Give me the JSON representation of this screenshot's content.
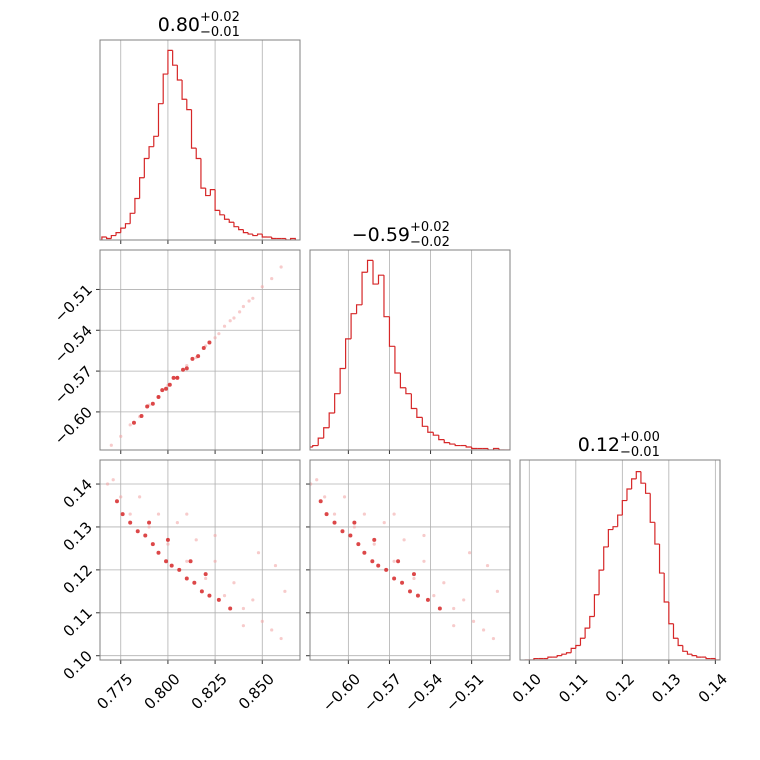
{
  "chart_data": [
    {
      "type": "histogram",
      "title": "0.80",
      "title_upper": "+0.02",
      "title_lower": "−0.01",
      "color": "#d62728",
      "grid": true,
      "xlim": [
        0.764,
        0.87
      ],
      "ylim": [
        0,
        135
      ],
      "xticks": [
        0.775,
        0.8,
        0.825,
        0.85
      ],
      "bins": [
        0.765,
        0.7675,
        0.77,
        0.7725,
        0.775,
        0.7775,
        0.78,
        0.7825,
        0.785,
        0.7875,
        0.79,
        0.7925,
        0.795,
        0.7975,
        0.8,
        0.8025,
        0.805,
        0.8075,
        0.81,
        0.8125,
        0.815,
        0.8175,
        0.82,
        0.8225,
        0.825,
        0.8275,
        0.83,
        0.8325,
        0.835,
        0.8375,
        0.84,
        0.8425,
        0.845,
        0.8475,
        0.85,
        0.8525,
        0.855,
        0.8575,
        0.86,
        0.8625,
        0.865,
        0.8675
      ],
      "values": [
        2,
        1,
        3,
        5,
        8,
        11,
        18,
        28,
        42,
        55,
        63,
        70,
        92,
        112,
        128,
        118,
        108,
        95,
        88,
        62,
        55,
        35,
        30,
        34,
        20,
        17,
        14,
        12,
        9,
        7,
        5,
        4,
        3,
        4,
        2,
        2,
        1,
        1,
        1,
        0,
        1
      ]
    },
    {
      "type": "scatter",
      "grid": true,
      "xlim": [
        0.764,
        0.87
      ],
      "ylim": [
        -0.628,
        -0.481
      ],
      "xticks": [
        0.775,
        0.8,
        0.825,
        0.85
      ],
      "yticks": [
        {
          "value": -0.51,
          "label": "−0.51"
        },
        {
          "value": -0.54,
          "label": "−0.54"
        },
        {
          "value": -0.57,
          "label": "−0.57"
        },
        {
          "value": -0.6,
          "label": "−0.60"
        }
      ],
      "series": [
        {
          "color": "#f2a9a9",
          "x": [
            0.77,
            0.775,
            0.78,
            0.785,
            0.79,
            0.795,
            0.8,
            0.805,
            0.81,
            0.815,
            0.82,
            0.825,
            0.83,
            0.835,
            0.84,
            0.845,
            0.85,
            0.855,
            0.86,
            0.827,
            0.833,
            0.838,
            0.843
          ],
          "y": [
            -0.6245,
            -0.618,
            -0.6095,
            -0.6035,
            -0.595,
            -0.589,
            -0.5805,
            -0.5745,
            -0.566,
            -0.56,
            -0.5515,
            -0.5455,
            -0.537,
            -0.531,
            -0.5225,
            -0.5165,
            -0.508,
            -0.502,
            -0.4935,
            -0.5425,
            -0.533,
            -0.5265,
            -0.5185
          ]
        },
        {
          "color": "#d62728",
          "x": [
            0.782,
            0.786,
            0.789,
            0.792,
            0.795,
            0.797,
            0.799,
            0.801,
            0.803,
            0.805,
            0.808,
            0.81,
            0.813,
            0.816,
            0.819,
            0.822
          ],
          "y": [
            -0.608,
            -0.603,
            -0.596,
            -0.594,
            -0.589,
            -0.584,
            -0.583,
            -0.58,
            -0.575,
            -0.575,
            -0.569,
            -0.568,
            -0.561,
            -0.559,
            -0.553,
            -0.549
          ]
        }
      ]
    },
    {
      "type": "histogram",
      "title": "−0.59",
      "title_upper": "+0.02",
      "title_lower": "−0.02",
      "color": "#d62728",
      "grid": true,
      "xlim": [
        -0.628,
        -0.482
      ],
      "ylim": [
        0,
        135
      ],
      "xticks": [
        -0.6,
        -0.57,
        -0.54,
        -0.51
      ],
      "bins": [
        -0.63,
        -0.626,
        -0.622,
        -0.618,
        -0.614,
        -0.61,
        -0.606,
        -0.602,
        -0.598,
        -0.594,
        -0.59,
        -0.586,
        -0.582,
        -0.578,
        -0.574,
        -0.57,
        -0.566,
        -0.562,
        -0.558,
        -0.554,
        -0.55,
        -0.546,
        -0.542,
        -0.538,
        -0.534,
        -0.53,
        -0.526,
        -0.522,
        -0.518,
        -0.514,
        -0.51,
        -0.506,
        -0.502,
        -0.498,
        -0.494,
        -0.49,
        -0.486,
        -0.482
      ],
      "values": [
        2,
        3,
        8,
        15,
        25,
        38,
        55,
        75,
        92,
        98,
        120,
        128,
        112,
        118,
        90,
        70,
        52,
        42,
        38,
        28,
        22,
        16,
        12,
        10,
        7,
        5,
        4,
        3,
        3,
        2,
        1,
        1,
        1,
        0,
        1,
        0,
        0
      ]
    },
    {
      "type": "scatter",
      "grid": true,
      "xlim": [
        0.764,
        0.87
      ],
      "ylim": [
        0.099,
        0.1456
      ],
      "xticks": [
        0.775,
        {
          "value": 0.8,
          "label": "0.800"
        },
        0.825,
        {
          "value": 0.85,
          "label": "0.850"
        }
      ],
      "yticks": [
        {
          "value": 0.1,
          "label": "0.10"
        },
        0.11,
        0.12,
        0.13,
        0.14
      ],
      "series": [
        {
          "color": "#f2a9a9",
          "x": [
            0.768,
            0.771,
            0.775,
            0.78,
            0.785,
            0.79,
            0.795,
            0.8,
            0.805,
            0.81,
            0.815,
            0.82,
            0.825,
            0.83,
            0.835,
            0.84,
            0.845,
            0.85,
            0.855,
            0.86,
            0.857,
            0.862,
            0.81,
            0.825,
            0.84,
            0.848
          ],
          "y": [
            0.14,
            0.141,
            0.137,
            0.133,
            0.137,
            0.13,
            0.133,
            0.126,
            0.131,
            0.122,
            0.127,
            0.118,
            0.122,
            0.114,
            0.117,
            0.111,
            0.113,
            0.108,
            0.106,
            0.104,
            0.121,
            0.115,
            0.133,
            0.128,
            0.107,
            0.124
          ]
        },
        {
          "color": "#d62728",
          "x": [
            0.773,
            0.776,
            0.78,
            0.784,
            0.788,
            0.792,
            0.795,
            0.799,
            0.802,
            0.806,
            0.81,
            0.814,
            0.818,
            0.822,
            0.827,
            0.833,
            0.79,
            0.8,
            0.812,
            0.82
          ],
          "y": [
            0.136,
            0.133,
            0.131,
            0.129,
            0.128,
            0.126,
            0.124,
            0.122,
            0.121,
            0.12,
            0.118,
            0.117,
            0.115,
            0.114,
            0.113,
            0.111,
            0.131,
            0.127,
            0.122,
            0.119
          ]
        }
      ]
    },
    {
      "type": "scatter",
      "grid": true,
      "xlim": [
        -0.628,
        -0.482
      ],
      "ylim": [
        0.099,
        0.1456
      ],
      "xticks": [
        {
          "value": -0.6,
          "label": "−0.60"
        },
        {
          "value": -0.57,
          "label": "−0.57"
        },
        {
          "value": -0.54,
          "label": "−0.54"
        },
        {
          "value": -0.51,
          "label": "−0.51"
        }
      ],
      "yticks": [
        0.1,
        0.11,
        0.12,
        0.13,
        0.14
      ],
      "series": [
        {
          "color": "#f2a9a9",
          "x": [
            -0.6275,
            -0.6231,
            -0.6173,
            -0.6101,
            -0.6028,
            -0.5956,
            -0.5883,
            -0.5811,
            -0.5738,
            -0.5666,
            -0.5593,
            -0.5521,
            -0.5448,
            -0.5376,
            -0.5303,
            -0.5231,
            -0.5158,
            -0.5086,
            -0.5013,
            -0.4941,
            -0.4984,
            -0.4912,
            -0.5666,
            -0.5448,
            -0.5231,
            -0.5115
          ],
          "y": [
            0.14,
            0.141,
            0.137,
            0.133,
            0.137,
            0.13,
            0.133,
            0.126,
            0.131,
            0.122,
            0.127,
            0.118,
            0.122,
            0.114,
            0.117,
            0.111,
            0.113,
            0.108,
            0.106,
            0.104,
            0.121,
            0.115,
            0.133,
            0.128,
            0.107,
            0.124
          ]
        },
        {
          "color": "#d62728",
          "x": [
            -0.6202,
            -0.6159,
            -0.6101,
            -0.6043,
            -0.5985,
            -0.5927,
            -0.5883,
            -0.5825,
            -0.5782,
            -0.5724,
            -0.5666,
            -0.5608,
            -0.555,
            -0.5492,
            -0.5419,
            -0.5332,
            -0.5956,
            -0.5811,
            -0.5637,
            -0.5521
          ],
          "y": [
            0.136,
            0.133,
            0.131,
            0.129,
            0.128,
            0.126,
            0.124,
            0.122,
            0.121,
            0.12,
            0.118,
            0.117,
            0.115,
            0.114,
            0.113,
            0.111,
            0.131,
            0.127,
            0.122,
            0.119
          ]
        }
      ]
    },
    {
      "type": "histogram",
      "title": "0.12",
      "title_upper": "+0.00",
      "title_lower": "−0.01",
      "color": "#d62728",
      "grid": true,
      "xlim": [
        0.098,
        0.141
      ],
      "ylim": [
        0,
        138
      ],
      "xticks": [
        {
          "value": 0.1,
          "label": "0.10"
        },
        0.11,
        0.12,
        0.13,
        0.14
      ],
      "bins": [
        0.099,
        0.1,
        0.101,
        0.102,
        0.103,
        0.104,
        0.105,
        0.106,
        0.107,
        0.108,
        0.109,
        0.11,
        0.111,
        0.112,
        0.113,
        0.114,
        0.115,
        0.116,
        0.117,
        0.118,
        0.119,
        0.12,
        0.121,
        0.122,
        0.123,
        0.124,
        0.125,
        0.126,
        0.127,
        0.128,
        0.129,
        0.13,
        0.131,
        0.132,
        0.133,
        0.134,
        0.135,
        0.136,
        0.137,
        0.138,
        0.139,
        0.14,
        0.141
      ],
      "values": [
        0,
        0,
        1,
        1,
        1,
        2,
        2,
        3,
        4,
        5,
        8,
        10,
        15,
        22,
        30,
        45,
        62,
        78,
        90,
        92,
        100,
        110,
        118,
        125,
        130,
        122,
        115,
        95,
        80,
        60,
        40,
        25,
        15,
        10,
        6,
        4,
        3,
        2,
        2,
        1,
        1,
        0
      ]
    }
  ]
}
